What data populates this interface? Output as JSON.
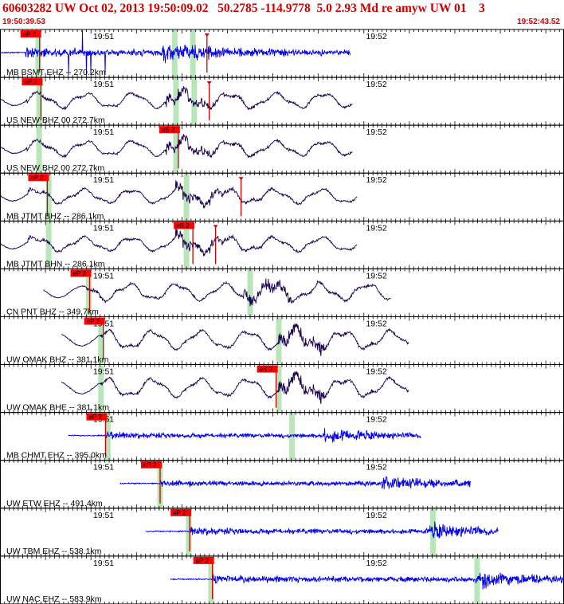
{
  "header": {
    "title": "60603282 UW Oct 02, 2013 19:50:09.02   50.2785 -114.9778  5.0 2.93 Md re amyw UW 01    3",
    "start_time": "19:50:39.53",
    "end_time": "19:52:43.52"
  },
  "chart_data": {
    "type": "seismogram",
    "time_ticks": [
      "19:51",
      "19:52"
    ],
    "tick_times_s": [
      20.47,
      80.47
    ],
    "window_s": 124,
    "colors": {
      "blue": "#0000ee",
      "purple": "#1a0050",
      "pick_box": "#ff0000",
      "pick_line": "#cc0000",
      "window_band": "#b8e6b8",
      "grid": "#000000"
    },
    "traces": [
      {
        "label": "MB BSMT EHZ -- 270.2km",
        "color": "blue",
        "style": "hf",
        "start": 0.0,
        "end": 77.0,
        "p_time": 5.6,
        "s_time": 35.5,
        "amp": 1.0,
        "spiky": true,
        "picks": [
          {
            "text": "eP 2",
            "t": 4.5
          },
          {
            "text": "",
            "t": 45.5
          }
        ],
        "windows": [
          8.4,
          38.4,
          42.4
        ]
      },
      {
        "label": "US NEW BHZ 00 272.7km",
        "color": "purple",
        "style": "lf",
        "start": 0.0,
        "end": 77.5,
        "p_time": 5.9,
        "s_time": 36.5,
        "amp": 0.9,
        "picks": [
          {
            "text": "eP 2",
            "t": 4.8
          },
          {
            "text": "",
            "t": 46.0
          }
        ],
        "windows": [
          8.6,
          38.7,
          42.7
        ]
      },
      {
        "label": "US NEW BH2 00 272.7km",
        "color": "purple",
        "style": "lf",
        "start": 0.0,
        "end": 77.5,
        "p_time": 5.9,
        "s_time": 36.5,
        "amp": 0.9,
        "picks": [
          {
            "text": "eS 2",
            "t": 35.0
          }
        ],
        "windows": [
          8.6,
          38.7
        ]
      },
      {
        "label": "MB JTMT BHZ -- 286.1km",
        "color": "purple",
        "style": "lf",
        "start": 0.0,
        "end": 78.5,
        "p_time": 6.2,
        "s_time": 38.6,
        "amp": 0.85,
        "picks": [
          {
            "text": "eP 2",
            "t": 6.2
          },
          {
            "text": "",
            "t": 53.0
          }
        ],
        "windows": [
          10.7,
          41.0
        ]
      },
      {
        "label": "MB JTMT BHN -- 286.1km",
        "color": "purple",
        "style": "lf",
        "start": 0.0,
        "end": 78.5,
        "p_time": 6.2,
        "s_time": 38.6,
        "amp": 0.85,
        "picks": [
          {
            "text": "eS 2",
            "t": 38.2
          },
          {
            "text": "",
            "t": 47.4
          }
        ],
        "windows": [
          10.7,
          41.0
        ]
      },
      {
        "label": "CN PNT BHZ -- 349.7km",
        "color": "purple",
        "style": "lf",
        "start": 9.5,
        "end": 86.0,
        "p_time": 19.0,
        "s_time": 53.5,
        "amp": 1.0,
        "picks": [
          {
            "text": "eP 2",
            "t": 15.5
          }
        ],
        "windows": [
          19.5,
          55.0
        ]
      },
      {
        "label": "UW OMAK BHZ -- 381.1km",
        "color": "purple",
        "style": "lf",
        "start": 13.5,
        "end": 90.0,
        "p_time": 22.2,
        "s_time": 61.3,
        "amp": 1.1,
        "picks": [
          {
            "text": "eP 2",
            "t": 18.5
          }
        ],
        "windows": [
          22.2,
          61.3
        ]
      },
      {
        "label": "UW OMAK BHE -- 381.1km",
        "color": "purple",
        "style": "lf",
        "start": 13.5,
        "end": 90.0,
        "p_time": 22.2,
        "s_time": 61.3,
        "amp": 1.1,
        "picks": [
          {
            "text": "eS 2",
            "t": 56.5
          }
        ],
        "windows": [
          22.2,
          61.3
        ]
      },
      {
        "label": "MB CHMT EHZ -- 395.0km",
        "color": "blue",
        "style": "hf",
        "start": 15.0,
        "end": 92.5,
        "p_time": 23.4,
        "s_time": 71.0,
        "amp": 0.7,
        "picks": [
          {
            "text": "eP 2",
            "t": 19.0
          }
        ],
        "windows": [
          23.7,
          64.2
        ]
      },
      {
        "label": "UW ETW EHZ -- 491.4km",
        "color": "blue",
        "style": "hf",
        "start": 26.4,
        "end": 103.5,
        "p_time": 35.2,
        "s_time": 84.0,
        "amp": 0.7,
        "picks": [
          {
            "text": "eP 2",
            "t": 31.0
          }
        ],
        "windows": [
          35.2
        ]
      },
      {
        "label": "UW TBM EHZ -- 538.1km",
        "color": "blue",
        "style": "hf",
        "start": 32.0,
        "end": 109.5,
        "p_time": 41.8,
        "s_time": 94.5,
        "amp": 0.8,
        "picks": [
          {
            "text": "eP 2",
            "t": 37.5
          }
        ],
        "windows": [
          41.5,
          95.2
        ]
      },
      {
        "label": "UW NAC EHZ -- 583.9km",
        "color": "blue",
        "style": "hf",
        "start": 37.5,
        "end": 124.0,
        "p_time": 46.8,
        "s_time": 104.5,
        "amp": 0.9,
        "picks": [
          {
            "text": "eP 2",
            "t": 42.5
          }
        ],
        "windows": [
          46.4,
          104.9
        ]
      }
    ]
  }
}
